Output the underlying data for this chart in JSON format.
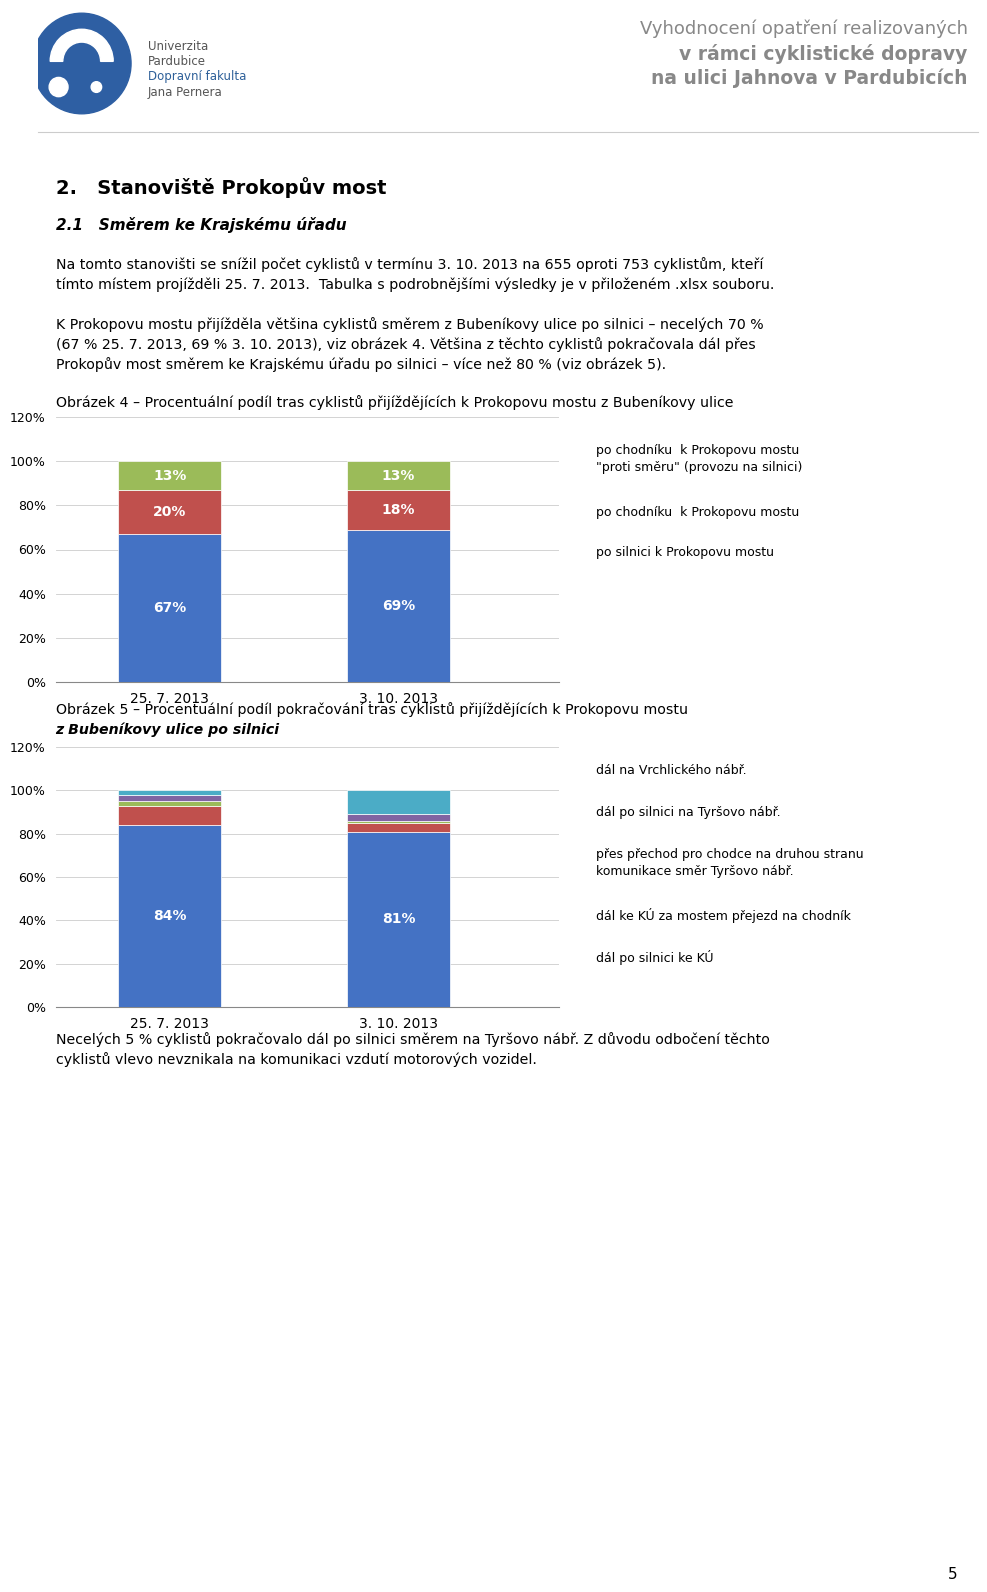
{
  "header_title_line1": "Vyhodnocení opatření realizovaných",
  "header_title_line2": "v rámci cyklistické dopravy",
  "header_title_line3": "na ulici Jahnova v Pardubicích",
  "section_title": "2.   Stanoviště Prokopův most",
  "subsection_title": "2.1   Směrem ke Krajskému úřadu",
  "para1_line1": "Na tomto stanovišti se snížil počet cyklistů v termínu 3. 10. 2013 na 655 oproti 753 cyklistům, kteří",
  "para1_line2": "tímto místem projížděli 25. 7. 2013.  Tabulka s podrobnějšími výsledky je v přiloženém .xlsx souboru.",
  "para2_line1": "K Prokopovu mostu přijížděla většina cyklistů směrem z Bubeníkovy ulice po silnici – necelých 70 %",
  "para2_line2": "(67 % 25. 7. 2013, 69 % 3. 10. 2013), viz obrázek 4. Většina z těchto cyklistů pokračovala dál přes",
  "para2_line3": "Prokopův most směrem ke Krajskému úřadu po silnici – více než 80 % (viz obrázek 5).",
  "chart1_title": "Obrázek 4 – Procentuální podíl tras cyklistů přijíždějících k Prokopovu mostu z Bubeníkovy ulice",
  "chart1_categories": [
    "25. 7. 2013",
    "3. 10. 2013"
  ],
  "chart1_series": [
    {
      "name": "po silnici k Prokopovu mostu",
      "values": [
        67,
        69
      ],
      "color": "#4472C4"
    },
    {
      "name": "po chodníku  k Prokopovu mostu",
      "values": [
        20,
        18
      ],
      "color": "#C0504D"
    },
    {
      "name": "po chodníku  k Prokopovu mostu\n\"proti směru\" (provozu na silnici)",
      "values": [
        13,
        13
      ],
      "color": "#9BBB59"
    }
  ],
  "chart1_ylim": [
    0,
    120
  ],
  "chart1_yticks": [
    0,
    20,
    40,
    60,
    80,
    100,
    120
  ],
  "chart1_yticklabels": [
    "0%",
    "20%",
    "40%",
    "60%",
    "80%",
    "100%",
    "120%"
  ],
  "chart2_title_line1": "Obrázek 5 – Procentuální podíl pokračování tras cyklistů přijíždějících k Prokopovu mostu",
  "chart2_title_line2": "z Bubeníkovy ulice po silnici",
  "chart2_categories": [
    "25. 7. 2013",
    "3. 10. 2013"
  ],
  "chart2_series": [
    {
      "name": "dál po silnici ke KÚ",
      "values": [
        84,
        81
      ],
      "color": "#4472C4"
    },
    {
      "name": "dál ke KÚ za mostem přejezd na chodník",
      "values": [
        9,
        4
      ],
      "color": "#C0504D"
    },
    {
      "name": "přes přechod pro chodce na druhou stranu\nkomunikace směr Tyršovo nábř.",
      "values": [
        2,
        1
      ],
      "color": "#9BBB59"
    },
    {
      "name": "dál po silnici na Tyršovo nábř.",
      "values": [
        3,
        3
      ],
      "color": "#8064A2"
    },
    {
      "name": "dál na Vrchlického nábř.",
      "values": [
        2,
        11
      ],
      "color": "#4BACC6"
    }
  ],
  "chart2_ylim": [
    0,
    120
  ],
  "chart2_yticks": [
    0,
    20,
    40,
    60,
    80,
    100,
    120
  ],
  "chart2_yticklabels": [
    "0%",
    "20%",
    "40%",
    "60%",
    "80%",
    "100%",
    "120%"
  ],
  "para3_line1": "Necelých 5 % cyklistů pokračovalo dál po silnici směrem na Tyršovo nábř. Z důvodu odbočení těchto",
  "para3_line2": "cyklistů vlevo nevznikala na komunikaci vzdutí motorových vozidel.",
  "footer_page": "5",
  "bg_color": "#FFFFFF",
  "logo_color": "#2E5FA3",
  "uni_text_color": "#555555",
  "uni_blue_color": "#2E6099",
  "header_gray": "#888888"
}
